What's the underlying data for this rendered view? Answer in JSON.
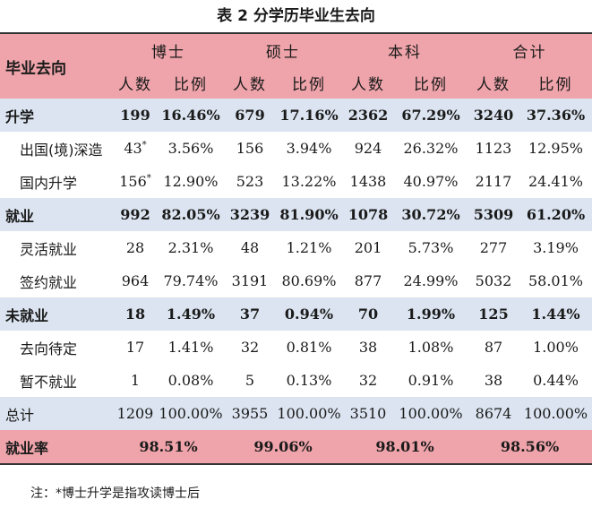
{
  "title": "表 2  分学历毕业生去向",
  "header": {
    "row_label": "毕业去向",
    "groups": [
      "博士",
      "硕士",
      "本科",
      "合计"
    ],
    "count_label": "人数",
    "ratio_label": "比例"
  },
  "rows": [
    {
      "label": "升学",
      "kind": "main",
      "cells": [
        "199",
        "16.46%",
        "679",
        "17.16%",
        "2362",
        "67.29%",
        "3240",
        "37.36%"
      ]
    },
    {
      "label": "出国(境)深造",
      "kind": "sub",
      "cells": [
        "43",
        "3.56%",
        "156",
        "3.94%",
        "924",
        "26.32%",
        "1123",
        "12.95%"
      ],
      "mark": "*"
    },
    {
      "label": "国内升学",
      "kind": "sub",
      "cells": [
        "156",
        "12.90%",
        "523",
        "13.22%",
        "1438",
        "40.97%",
        "2117",
        "24.41%"
      ],
      "mark": "*"
    },
    {
      "label": "就业",
      "kind": "main",
      "cells": [
        "992",
        "82.05%",
        "3239",
        "81.90%",
        "1078",
        "30.72%",
        "5309",
        "61.20%"
      ]
    },
    {
      "label": "灵活就业",
      "kind": "sub",
      "cells": [
        "28",
        "2.31%",
        "48",
        "1.21%",
        "201",
        "5.73%",
        "277",
        "3.19%"
      ]
    },
    {
      "label": "签约就业",
      "kind": "sub",
      "cells": [
        "964",
        "79.74%",
        "3191",
        "80.69%",
        "877",
        "24.99%",
        "5032",
        "58.01%"
      ]
    },
    {
      "label": "未就业",
      "kind": "main",
      "cells": [
        "18",
        "1.49%",
        "37",
        "0.94%",
        "70",
        "1.99%",
        "125",
        "1.44%"
      ]
    },
    {
      "label": "去向待定",
      "kind": "sub",
      "cells": [
        "17",
        "1.41%",
        "32",
        "0.81%",
        "38",
        "1.08%",
        "87",
        "1.00%"
      ]
    },
    {
      "label": "暂不就业",
      "kind": "sub",
      "cells": [
        "1",
        "0.08%",
        "5",
        "0.13%",
        "32",
        "0.91%",
        "38",
        "0.44%"
      ]
    },
    {
      "label": "总计",
      "kind": "total",
      "cells": [
        "1209",
        "100.00%",
        "3955",
        "100.00%",
        "3510",
        "100.00%",
        "8674",
        "100.00%"
      ]
    }
  ],
  "rate": {
    "label": "就业率",
    "values": [
      "98.51%",
      "99.06%",
      "98.01%",
      "98.56%"
    ]
  },
  "note": "注：*博士升学是指攻读博士后",
  "colors": {
    "header_pink": "#eea4aa",
    "band_blue": "#dbe4f0"
  }
}
